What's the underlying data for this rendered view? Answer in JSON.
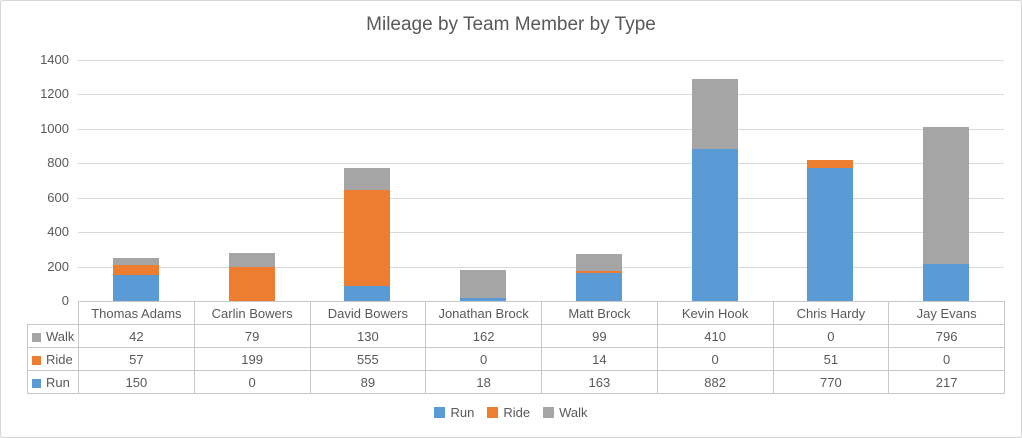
{
  "window": {
    "background": "#ffffff",
    "border_color": "#d6d6d6"
  },
  "chart_data": {
    "type": "bar",
    "stacked": true,
    "title": "Mileage by Team Member by Type",
    "categories": [
      "Thomas Adams",
      "Carlin Bowers",
      "David Bowers",
      "Jonathan Brock",
      "Matt Brock",
      "Kevin Hook",
      "Chris Hardy",
      "Jay Evans"
    ],
    "series": [
      {
        "name": "Run",
        "color": "#5b9bd5",
        "values": [
          150,
          0,
          89,
          18,
          163,
          882,
          770,
          217
        ]
      },
      {
        "name": "Ride",
        "color": "#ed7d31",
        "values": [
          57,
          199,
          555,
          0,
          14,
          0,
          51,
          0
        ]
      },
      {
        "name": "Walk",
        "color": "#a5a5a5",
        "values": [
          42,
          79,
          130,
          162,
          99,
          410,
          0,
          796
        ]
      }
    ],
    "xlabel": "",
    "ylabel": "",
    "ylim": [
      0,
      1400
    ],
    "ytick_step": 200,
    "ytick_labels": [
      "0",
      "200",
      "400",
      "600",
      "800",
      "1000",
      "1200",
      "1400"
    ],
    "grid": true,
    "gridline_color": "#d9d9d9",
    "text_color": "#595959",
    "legend_position": "bottom",
    "legend": [
      "Run",
      "Ride",
      "Walk"
    ],
    "data_table": {
      "visible": true,
      "row_order": [
        "Walk",
        "Ride",
        "Run"
      ],
      "border_color": "#c8c8c8"
    }
  }
}
